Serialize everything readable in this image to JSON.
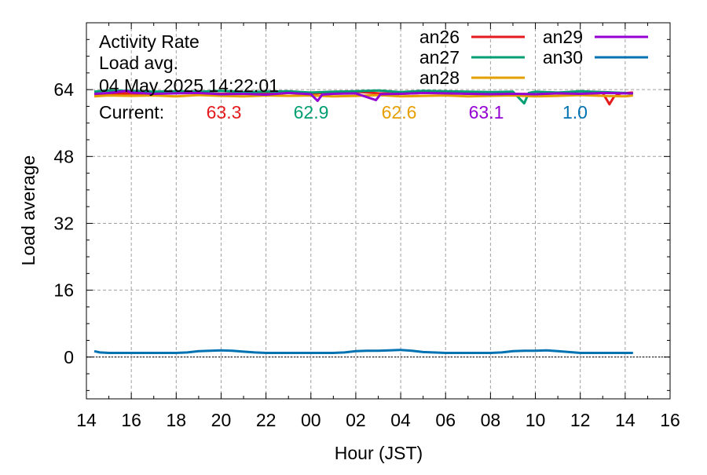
{
  "chart_data": {
    "type": "line",
    "title_lines": [
      "Activity Rate",
      "Load avg.",
      "04 May 2025 14:22:01"
    ],
    "current_label": "Current:",
    "xlabel": "Hour (JST)",
    "ylabel": "Load average",
    "x_unit": "hours since 14:00 on day 1 (tick labels show hour of day)",
    "xlim": [
      0,
      26
    ],
    "ylim": [
      -10,
      80
    ],
    "x_ticks": [
      {
        "value": 0,
        "label": "14"
      },
      {
        "value": 2,
        "label": "16"
      },
      {
        "value": 4,
        "label": "18"
      },
      {
        "value": 6,
        "label": "20"
      },
      {
        "value": 8,
        "label": "22"
      },
      {
        "value": 10,
        "label": "00"
      },
      {
        "value": 12,
        "label": "02"
      },
      {
        "value": 14,
        "label": "04"
      },
      {
        "value": 16,
        "label": "06"
      },
      {
        "value": 18,
        "label": "08"
      },
      {
        "value": 20,
        "label": "10"
      },
      {
        "value": 22,
        "label": "12"
      },
      {
        "value": 24,
        "label": "14"
      },
      {
        "value": 26,
        "label": "16"
      }
    ],
    "y_ticks": [
      {
        "value": 0,
        "label": "0"
      },
      {
        "value": 16,
        "label": "16"
      },
      {
        "value": 32,
        "label": "32"
      },
      {
        "value": 48,
        "label": "48"
      },
      {
        "value": 64,
        "label": "64"
      }
    ],
    "grid": true,
    "legend_position": "top-right",
    "series": [
      {
        "name": "an26",
        "color": "#e41a1c",
        "current": "63.3",
        "x": [
          0.35,
          1,
          2,
          3,
          4,
          5,
          6,
          7,
          8,
          9,
          10,
          11,
          12,
          13,
          14,
          15,
          16,
          17,
          18,
          19,
          20,
          21,
          22,
          23,
          23.3,
          23.5,
          23.8,
          24.35
        ],
        "y": [
          62.9,
          63.0,
          63.1,
          63.0,
          63.6,
          63.2,
          63.0,
          63.1,
          63.0,
          63.3,
          63.0,
          63.4,
          63.5,
          63.1,
          63.0,
          63.2,
          63.4,
          63.0,
          63.3,
          63.0,
          62.9,
          63.1,
          63.0,
          63.2,
          60.5,
          62.3,
          63.1,
          63.3
        ]
      },
      {
        "name": "an27",
        "color": "#009e73",
        "current": "62.9",
        "x": [
          0.35,
          1,
          2,
          3,
          4,
          5,
          6,
          7,
          8,
          9,
          10,
          11,
          12,
          13,
          14,
          15,
          16,
          17,
          18,
          19,
          19.5,
          19.7,
          20,
          21,
          22,
          23,
          24,
          24.35
        ],
        "y": [
          63.5,
          63.8,
          63.7,
          63.5,
          63.6,
          63.5,
          63.7,
          63.4,
          63.5,
          63.6,
          63.3,
          63.5,
          63.6,
          63.8,
          63.4,
          63.7,
          63.6,
          63.5,
          63.4,
          63.5,
          60.7,
          63.2,
          63.5,
          63.3,
          63.6,
          63.4,
          63.2,
          62.9
        ]
      },
      {
        "name": "an28",
        "color": "#e69f00",
        "current": "62.6",
        "x": [
          0.35,
          1,
          2,
          3,
          4,
          5,
          6,
          7,
          8,
          9,
          10,
          11,
          12,
          13,
          14,
          15,
          16,
          17,
          18,
          19,
          20,
          21,
          22,
          23,
          24,
          24.35
        ],
        "y": [
          62.4,
          62.6,
          62.5,
          62.6,
          62.4,
          62.7,
          62.5,
          62.4,
          62.6,
          62.5,
          62.6,
          62.4,
          62.5,
          62.7,
          62.4,
          62.5,
          62.6,
          62.4,
          62.5,
          62.6,
          62.4,
          62.5,
          62.7,
          62.5,
          62.4,
          62.6
        ]
      },
      {
        "name": "an29",
        "color": "#9400d3",
        "current": "63.1",
        "x": [
          0.35,
          1,
          1.8,
          2,
          3,
          4,
          5,
          6,
          7,
          8,
          9,
          10,
          10.3,
          10.5,
          11,
          12,
          12.9,
          13.1,
          14,
          15,
          16,
          17,
          18,
          19,
          20,
          21,
          22,
          23,
          24,
          24.35
        ],
        "y": [
          63.0,
          63.2,
          63.7,
          63.3,
          63.0,
          63.1,
          63.2,
          62.9,
          63.0,
          62.8,
          63.2,
          62.9,
          61.3,
          62.8,
          63.0,
          63.1,
          61.5,
          62.9,
          63.0,
          63.2,
          63.1,
          63.0,
          62.9,
          63.0,
          62.9,
          63.1,
          63.0,
          63.2,
          63.1,
          63.1
        ]
      },
      {
        "name": "an30",
        "color": "#0072b2",
        "current": "1.0",
        "x": [
          0.35,
          0.6,
          1,
          2,
          3,
          4,
          4.5,
          5,
          5.5,
          6,
          6.5,
          7,
          7.5,
          8,
          9,
          10,
          11,
          11.5,
          12,
          12.5,
          13,
          13.5,
          14,
          14.5,
          15,
          16,
          17,
          18,
          18.5,
          19,
          19.5,
          20,
          20.5,
          21,
          21.5,
          22,
          23,
          24,
          24.35
        ],
        "y": [
          1.4,
          1.1,
          1.0,
          1.0,
          1.0,
          1.0,
          1.1,
          1.4,
          1.5,
          1.6,
          1.5,
          1.3,
          1.1,
          1.0,
          1.0,
          1.0,
          1.0,
          1.1,
          1.4,
          1.5,
          1.5,
          1.6,
          1.7,
          1.5,
          1.2,
          1.0,
          1.0,
          1.0,
          1.1,
          1.4,
          1.5,
          1.5,
          1.6,
          1.4,
          1.2,
          1.0,
          1.0,
          1.0,
          1.0
        ]
      }
    ]
  }
}
